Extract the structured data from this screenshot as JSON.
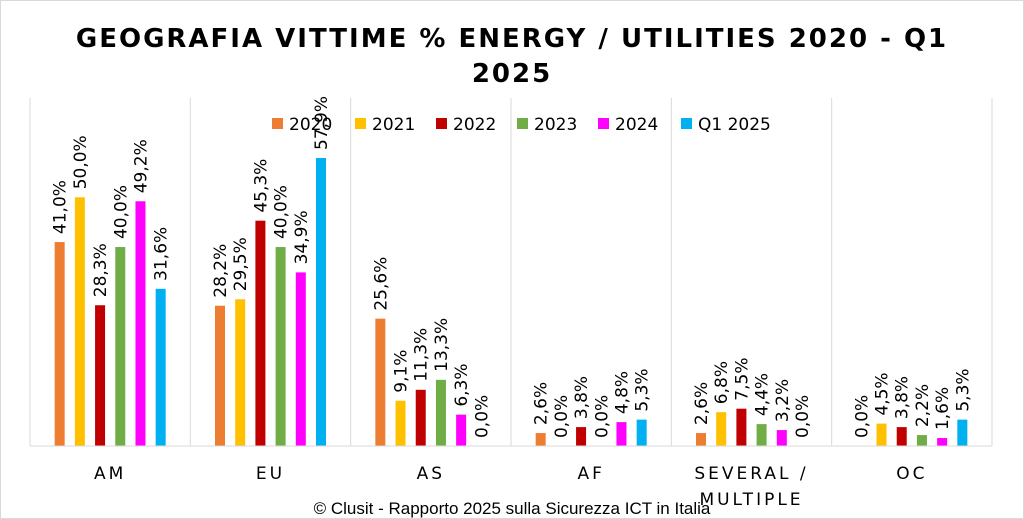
{
  "chart_data": {
    "type": "bar",
    "title_line1": "GEOGRAFIA VITTIME % ENERGY / UTILITIES 2020 - Q1",
    "title_line2": "2025",
    "categories": [
      [
        "AM"
      ],
      [
        "EU"
      ],
      [
        "AS"
      ],
      [
        "AF"
      ],
      [
        "SEVERAL /",
        "MULTIPLE"
      ],
      [
        "OC"
      ]
    ],
    "series": [
      {
        "name": "2020",
        "color": "#ED7D31",
        "values": [
          41.0,
          28.2,
          25.6,
          2.6,
          2.6,
          0.0
        ],
        "labels": [
          "41,0%",
          "28,2%",
          "25,6%",
          "2,6%",
          "2,6%",
          "0,0%"
        ]
      },
      {
        "name": "2021",
        "color": "#FFC000",
        "values": [
          50.0,
          29.5,
          9.1,
          0.0,
          6.8,
          4.5
        ],
        "labels": [
          "50,0%",
          "29,5%",
          "9,1%",
          "0,0%",
          "6,8%",
          "4,5%"
        ]
      },
      {
        "name": "2022",
        "color": "#C00000",
        "values": [
          28.3,
          45.3,
          11.3,
          3.8,
          7.5,
          3.8
        ],
        "labels": [
          "28,3%",
          "45,3%",
          "11,3%",
          "3,8%",
          "7,5%",
          "3,8%"
        ]
      },
      {
        "name": "2023",
        "color": "#70AD47",
        "values": [
          40.0,
          40.0,
          13.3,
          0.0,
          4.4,
          2.2
        ],
        "labels": [
          "40,0%",
          "40,0%",
          "13,3%",
          "0,0%",
          "4,4%",
          "2,2%"
        ]
      },
      {
        "name": "2024",
        "color": "#FF00FF",
        "values": [
          49.2,
          34.9,
          6.3,
          4.8,
          3.2,
          1.6
        ],
        "labels": [
          "49,2%",
          "34,9%",
          "6,3%",
          "4,8%",
          "3,2%",
          "1,6%"
        ]
      },
      {
        "name": "Q1 2025",
        "color": "#00B0F0",
        "values": [
          31.6,
          57.9,
          0.0,
          5.3,
          0.0,
          5.3
        ],
        "labels": [
          "31,6%",
          "57,9%",
          "0,0%",
          "5,3%",
          "0,0%",
          "5,3%"
        ]
      }
    ],
    "ylim": [
      0,
      60
    ],
    "legend": "top-center",
    "gridlines": "vertical category separators",
    "credit": "© Clusit - Rapporto 2025 sulla Sicurezza ICT in Italia"
  }
}
